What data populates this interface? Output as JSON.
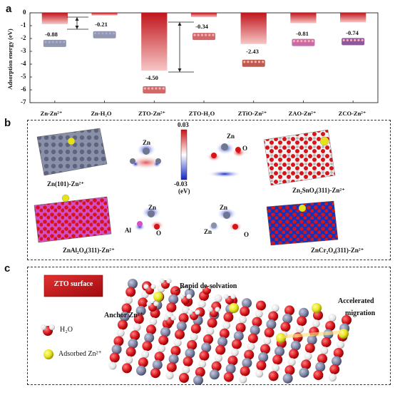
{
  "panel_a": {
    "letter": "a",
    "chart_data": {
      "type": "bar",
      "categories": [
        "Zn-Zn2+",
        "Zn-H2O",
        "ZTO-Zn2+",
        "ZTO-H2O",
        "ZTiO-Zn2+",
        "ZAO-Zn2+",
        "ZCO-Zn2+"
      ],
      "category_labels": [
        "Zn-Zn²⁺",
        "Zn-H₂O",
        "ZTO-Zn²⁺",
        "ZTO-H₂O",
        "ZTiO-Zn²⁺",
        "ZAO-Zn²⁺",
        "ZCO-Zn²⁺"
      ],
      "values": [
        -0.88,
        -0.21,
        -4.5,
        -0.34,
        -2.43,
        -0.81,
        -0.74
      ],
      "value_labels": [
        "-0.88",
        "-0.21",
        "-4.50",
        "-0.34",
        "-2.43",
        "-0.81",
        "-0.74"
      ],
      "ylabel": "Adsorption energy (eV)",
      "ylim": [
        -7,
        0
      ],
      "yticks": [
        0,
        -1,
        -2,
        -3,
        -4,
        -5,
        -6,
        -7
      ],
      "ytick_labels": [
        "0",
        "-1",
        "-2",
        "-3",
        "-4",
        "-5",
        "-6",
        "-7"
      ],
      "bar_color_top": "#f7c6c6",
      "bar_color_bottom": "#c0161c",
      "grid": false
    }
  },
  "panel_b": {
    "letter": "b",
    "labels": {
      "zn101": "Zn(101)-Zn²⁺",
      "zto": "Zn₂SnO₄(311)-Zn²⁺",
      "zao": "ZnAl₂O₄(311)-Zn²⁺",
      "zco": "ZnCr₂O₄(311)-Zn²⁺"
    },
    "colorbar": {
      "max": "0.03",
      "min": "-0.03",
      "unit": "(eV)"
    },
    "atom_labels": {
      "zn": "Zn",
      "o": "O",
      "al": "Al"
    }
  },
  "panel_c": {
    "letter": "c",
    "legend_box": "ZTO surface",
    "legend_h2o": "H₂O",
    "legend_zn": "Adsorbed Zn²⁺",
    "annotations": {
      "desolvation": "Rapid de-solvation",
      "anchor": "Anchor Zn²⁺",
      "migration_1": "Accelerated",
      "migration_2": "migration"
    }
  },
  "colors": {
    "oxygen": "#d8141b",
    "zinc": "#7d84a3",
    "tin": "#e8e8e8",
    "adsorbed_zn": "#e6e21a",
    "cb_pos": "#d01010",
    "cb_neg": "#1025c8"
  }
}
